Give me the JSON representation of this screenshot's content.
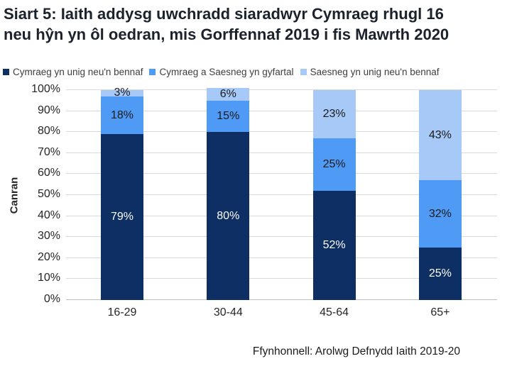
{
  "title": {
    "line1": "Siart 5: Iaith addysg uwchradd siaradwyr Cymraeg rhugl 16",
    "line2": "neu hŷn yn ôl oedran, mis Gorffennaf 2019 i fis Mawrth 2020"
  },
  "legend": [
    {
      "label": "Cymraeg yn unig neu'n bennaf",
      "color": "#0d2f63"
    },
    {
      "label": "Cymraeg a Saesneg yn gyfartal",
      "color": "#4f9af5"
    },
    {
      "label": "Saesneg yn unig neu'n bennaf",
      "color": "#a7c9f7"
    }
  ],
  "source": "Ffynhonnell: Arolwg Defnydd Iaith 2019-20",
  "colors": {
    "title_text": "#1b222b",
    "gridline": "#d9d9d9",
    "axis_line": "#bfbfbf",
    "tick_text": "#262626"
  },
  "chart_data": {
    "type": "bar",
    "stacked": true,
    "title": "Siart 5: Iaith addysg uwchradd siaradwyr Cymraeg rhugl 16 neu hŷn yn ôl oedran, mis Gorffennaf 2019 i fis Mawrth 2020",
    "categories": [
      "16-29",
      "30-44",
      "45-64",
      "65+"
    ],
    "series": [
      {
        "name": "Cymraeg yn unig neu'n bennaf",
        "color": "#0d2f63",
        "label_color": "#ffffff",
        "values": [
          79,
          80,
          52,
          25
        ],
        "labels": [
          "79%",
          "80%",
          "52%",
          "25%"
        ]
      },
      {
        "name": "Cymraeg a Saesneg yn gyfartal",
        "color": "#4f9af5",
        "label_color": "#1a1a1a",
        "values": [
          18,
          15,
          25,
          32
        ],
        "labels": [
          "18%",
          "15%",
          "25%",
          "32%"
        ]
      },
      {
        "name": "Saesneg yn unig neu'n bennaf",
        "color": "#a7c9f7",
        "label_color": "#1a1a1a",
        "values": [
          3,
          6,
          23,
          43
        ],
        "labels": [
          "3%",
          "6%",
          "23%",
          "43%"
        ]
      }
    ],
    "xlabel": "",
    "ylabel": "Canran",
    "ylim": [
      0,
      100
    ],
    "ytick_step": 10,
    "ytick_suffix": "%",
    "grid": true,
    "legend_position": "top"
  }
}
